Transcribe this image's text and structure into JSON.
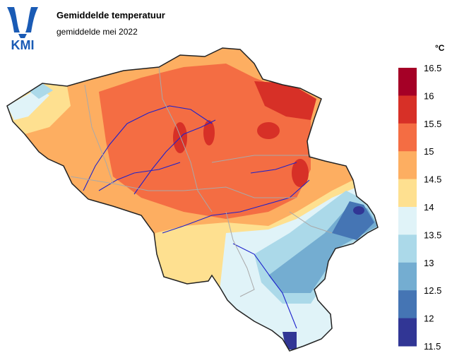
{
  "header": {
    "logo_text": "KMI",
    "title": "Gemiddelde temperatuur",
    "subtitle": "gemiddelde mei 2022"
  },
  "legend": {
    "unit": "°C",
    "ticks": [
      "16.5",
      "16",
      "15.5",
      "15",
      "14.5",
      "14",
      "13.5",
      "13",
      "12.5",
      "12",
      "11.5"
    ],
    "colors": [
      "#a50026",
      "#d73027",
      "#f46d43",
      "#fdae61",
      "#fee090",
      "#e0f3f8",
      "#abd9e9",
      "#74add1",
      "#4575b4",
      "#313695"
    ]
  }
}
